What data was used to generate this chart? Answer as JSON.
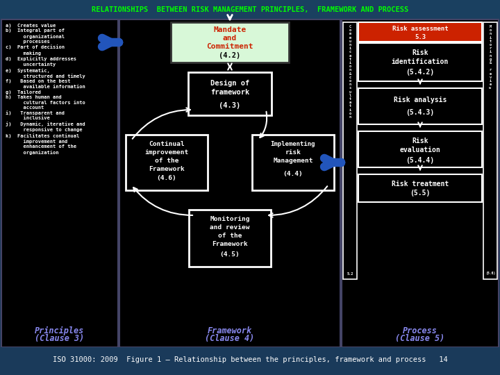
{
  "title": "RELATIONSHIPS  BETWEEN RISK MANAGEMENT PRINCIPLES,  FRAMEWORK AND PROCESS",
  "title_color": "#00FF00",
  "bg_color": "#1a3a5a",
  "footer": "ISO 31000: 2009  Figure 1 – Relationship between the principles, framework and process   14",
  "principles_text": "a)  Creates value\nb)  Integral part of\n      organizational\n      processes\nc)  Part of decision\n      making\nd)  Explicitly addresses\n      uncertainty\ne)  Systematic,\n      structured and timely\nf)   Based on the best\n      available information\ng)  Tailored\nh)  Takes human and\n      cultural factors into\n      account\ni)   Transparent and\n      inclusive\nj)   Dynamic, iterative and\n      responsive to change\nk)  Facilitates continual\n      improvement and\n      enhancement of the\n      organization",
  "comm_text": "C\no\nm\nm\nu\nn\ni\nc\na\nt\ni\no\nn\n&\nc\no\nn\ns\nu\nl\nt\na\nt\ni\no\nn",
  "monitor_text": "M\no\nn\ni\nt\no\nr\ni\nn\ng\n&\n\nr\ne\nv\ni\ne\nw"
}
